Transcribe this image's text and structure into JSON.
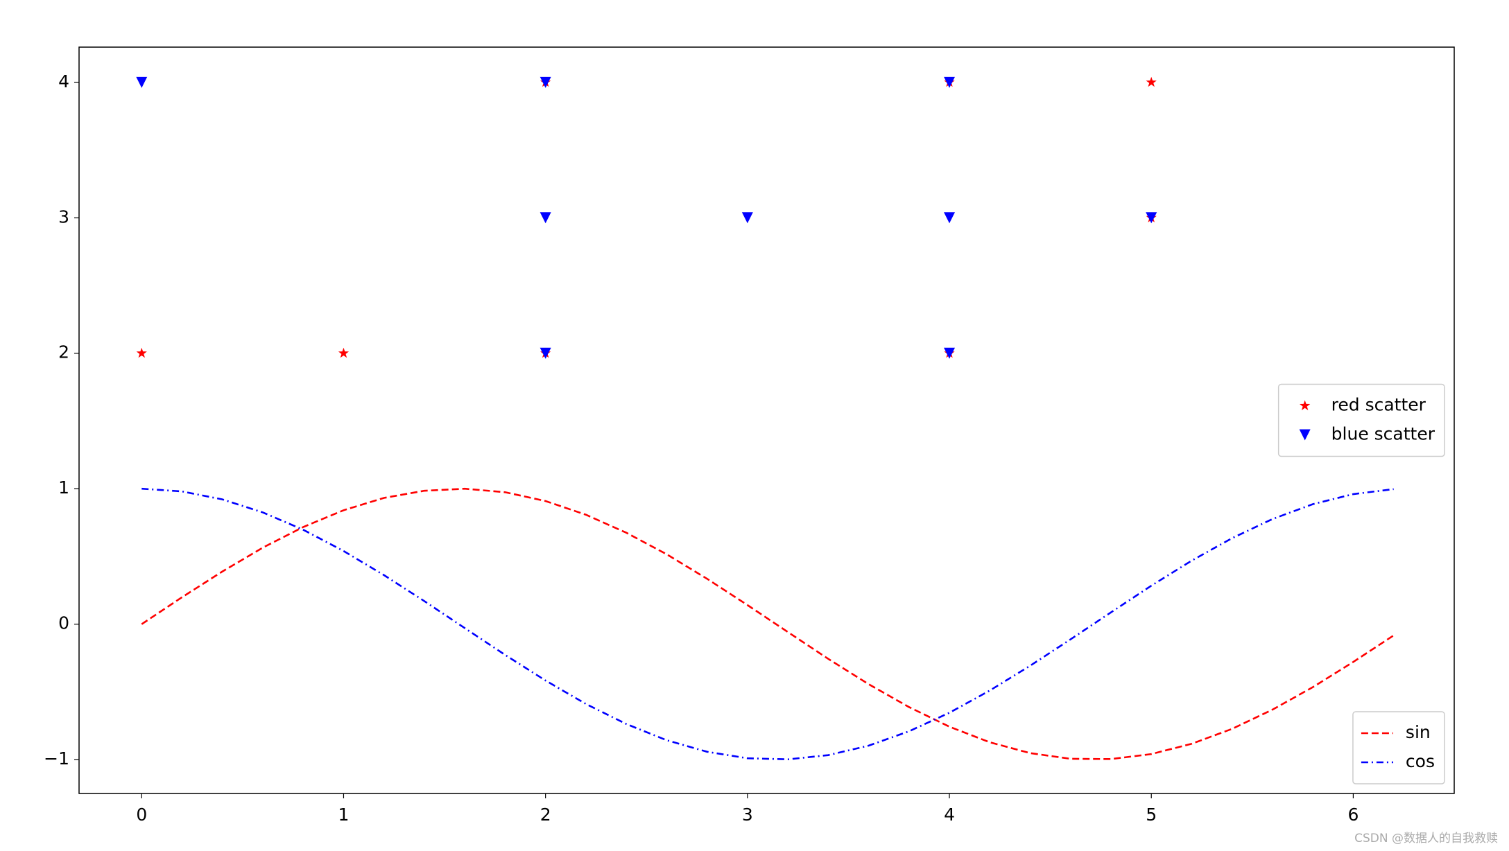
{
  "chart_data": {
    "type": "combo",
    "xlim": [
      -0.31,
      6.5
    ],
    "ylim": [
      -1.25,
      4.26
    ],
    "xticks": [
      0,
      1,
      2,
      3,
      4,
      5,
      6
    ],
    "yticks": [
      {
        "value": -1,
        "label": "−1"
      },
      0,
      1,
      2,
      3,
      4
    ],
    "watermark": "CSDN @数据人的自我救赎",
    "series": [
      {
        "name": "red scatter",
        "type": "scatter",
        "marker": "star",
        "color": "#ff0000",
        "legend": "center right",
        "x": [
          0,
          1,
          2,
          2,
          4,
          4,
          5,
          5
        ],
        "values": [
          2,
          2,
          4,
          2,
          4,
          2,
          4,
          3
        ]
      },
      {
        "name": "blue scatter",
        "type": "scatter",
        "marker": "triangle_down",
        "color": "#0000ff",
        "legend": "center right",
        "x": [
          0,
          2,
          2,
          2,
          3,
          4,
          4,
          4,
          5
        ],
        "values": [
          4,
          4,
          3,
          2,
          3,
          4,
          3,
          2,
          3
        ]
      },
      {
        "name": "sin",
        "type": "line",
        "linestyle": "--",
        "color": "#ff0000",
        "legend": "lower right",
        "x": [
          0,
          0.2,
          0.4,
          0.6,
          0.8,
          1.0,
          1.2,
          1.4,
          1.6,
          1.8,
          2.0,
          2.2,
          2.4,
          2.6,
          2.8,
          3.0,
          3.2,
          3.4,
          3.6,
          3.8,
          4.0,
          4.2,
          4.4,
          4.6,
          4.8,
          5.0,
          5.2,
          5.4,
          5.6,
          5.8,
          6.0,
          6.2
        ],
        "values": [
          0,
          0.199,
          0.389,
          0.565,
          0.717,
          0.841,
          0.932,
          0.985,
          1.0,
          0.974,
          0.909,
          0.808,
          0.675,
          0.516,
          0.335,
          0.141,
          -0.058,
          -0.256,
          -0.443,
          -0.612,
          -0.757,
          -0.872,
          -0.952,
          -0.994,
          -0.996,
          -0.959,
          -0.883,
          -0.773,
          -0.631,
          -0.465,
          -0.279,
          -0.083
        ]
      },
      {
        "name": "cos",
        "type": "line",
        "linestyle": "-.",
        "color": "#0000ff",
        "legend": "lower right",
        "x": [
          0,
          0.2,
          0.4,
          0.6,
          0.8,
          1.0,
          1.2,
          1.4,
          1.6,
          1.8,
          2.0,
          2.2,
          2.4,
          2.6,
          2.8,
          3.0,
          3.2,
          3.4,
          3.6,
          3.8,
          4.0,
          4.2,
          4.4,
          4.6,
          4.8,
          5.0,
          5.2,
          5.4,
          5.6,
          5.8,
          6.0,
          6.2
        ],
        "values": [
          1,
          0.98,
          0.921,
          0.825,
          0.697,
          0.54,
          0.362,
          0.17,
          -0.029,
          -0.227,
          -0.416,
          -0.589,
          -0.737,
          -0.857,
          -0.942,
          -0.99,
          -0.998,
          -0.967,
          -0.897,
          -0.791,
          -0.654,
          -0.49,
          -0.307,
          -0.112,
          0.087,
          0.284,
          0.469,
          0.635,
          0.776,
          0.886,
          0.96,
          0.997
        ]
      }
    ]
  }
}
